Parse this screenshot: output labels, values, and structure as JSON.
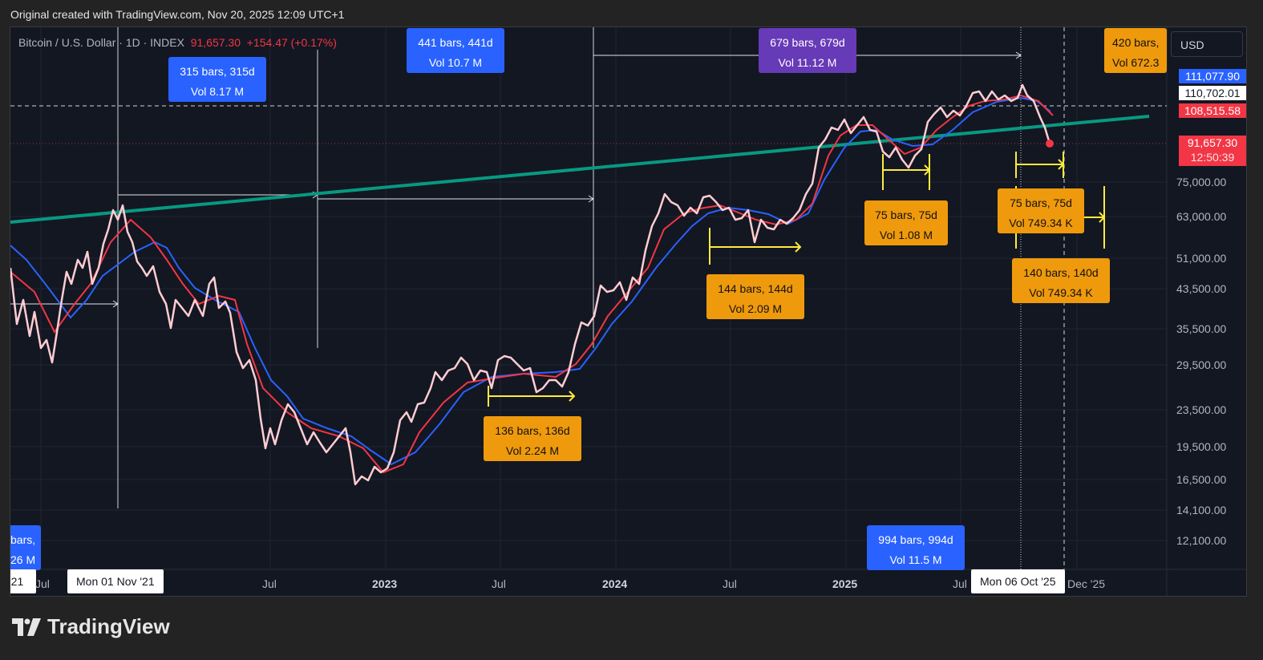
{
  "top_note": "Original created with TradingView.com, Nov 20, 2025 12:09 UTC+1",
  "legend": {
    "symbol": "Bitcoin / U.S. Dollar · 1D · INDEX",
    "price": "91,657.30",
    "change": "+154.47 (+0.17%)"
  },
  "currency_button": "USD",
  "price_axis": [
    "75,000.00",
    "63,000.00",
    "51,000.00",
    "43,500.00",
    "35,500.00",
    "29,500.00",
    "23,500.00",
    "19,500.00",
    "16,500.00",
    "14,100.00",
    "12,100.00"
  ],
  "price_tags": {
    "blue_ma": "111,077.90",
    "crosshair": "110,702.01",
    "red_ma": "108,515.58",
    "last_price": "91,657.30",
    "countdown": "12:50:39"
  },
  "time_axis": {
    "labels": [
      "'21",
      "Jul",
      "Jul",
      "2023",
      "Jul",
      "2024",
      "Jul",
      "2025",
      "Jul",
      "Dec '25"
    ],
    "bold": [
      "2023",
      "2024",
      "2025"
    ],
    "crosshair_left": "Mon 01 Nov '21",
    "crosshair_right": "Mon 06 Oct '25"
  },
  "range_labels": [
    {
      "line1": "315 bars, 315d",
      "line2": "Vol 8.17 M",
      "color": "blue"
    },
    {
      "line1": "441 bars, 441d",
      "line2": "Vol 10.7 M",
      "color": "blue"
    },
    {
      "line1": "679 bars, 679d",
      "line2": "Vol 11.12 M",
      "color": "purple"
    },
    {
      "line1": "420 bars,",
      "line2": "Vol 672.3",
      "color": "orange"
    },
    {
      "line1": "bars,",
      "line2": "26 M",
      "color": "blue"
    },
    {
      "line1": "994 bars, 994d",
      "line2": "Vol 11.5 M",
      "color": "blue"
    },
    {
      "line1": "136 bars, 136d",
      "line2": "Vol 2.24 M",
      "color": "orange"
    },
    {
      "line1": "144 bars, 144d",
      "line2": "Vol 2.09 M",
      "color": "orange"
    },
    {
      "line1": "75 bars, 75d",
      "line2": "Vol 1.08 M",
      "color": "orange"
    },
    {
      "line1": "75 bars, 75d",
      "line2": "Vol 749.34 K",
      "color": "orange"
    },
    {
      "line1": "140 bars, 140d",
      "line2": "Vol 749.34 K",
      "color": "orange"
    }
  ],
  "colors": {
    "price_line": "#ffcdd2",
    "ma_fast": "#f23645",
    "ma_slow": "#2962ff",
    "trend": "#089981",
    "range_yellow": "#ffeb3b"
  },
  "brand": "TradingView"
}
